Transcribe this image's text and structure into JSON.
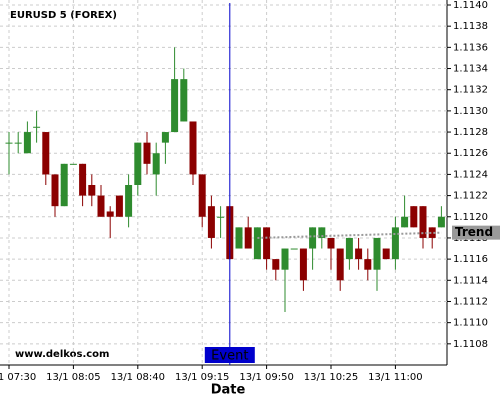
{
  "chart_data": {
    "type": "candlestick",
    "title": "EURUSD 5 (FOREX)",
    "x_label": "Date",
    "watermark": "www.delkos.com",
    "categories": [
      "13/1 07:30",
      null,
      null,
      null,
      null,
      null,
      null,
      "13/1 08:05",
      null,
      null,
      null,
      null,
      null,
      null,
      "13/1 08:40",
      null,
      null,
      null,
      null,
      null,
      null,
      "13/1 09:15",
      null,
      null,
      null,
      null,
      null,
      null,
      "13/1 09:50",
      null,
      null,
      null,
      null,
      null,
      null,
      "13/1 10:25",
      null,
      null,
      null,
      null,
      null,
      null,
      "13/1 11:00",
      null,
      null,
      null,
      null,
      null
    ],
    "open": [
      1.1127,
      1.1127,
      1.1126,
      1.11285,
      1.1128,
      1.1124,
      1.1121,
      1.1125,
      1.1125,
      1.1123,
      1.1122,
      1.11205,
      1.1122,
      1.112,
      1.1123,
      1.1127,
      1.1124,
      1.1127,
      1.1128,
      1.1129,
      1.1129,
      1.1124,
      1.1121,
      1.112,
      1.1121,
      1.1117,
      1.1119,
      1.1116,
      1.1119,
      1.1116,
      1.1115,
      1.1117,
      1.1117,
      1.1117,
      1.1118,
      1.1118,
      1.1117,
      1.1116,
      1.1117,
      1.1116,
      1.1115,
      1.1117,
      1.1116,
      1.1119,
      1.1121,
      1.1121,
      1.1119,
      1.1119
    ],
    "high": [
      1.1128,
      1.1128,
      1.1129,
      1.113,
      1.1128,
      1.1124,
      1.1125,
      1.1125,
      1.1125,
      1.1124,
      1.1123,
      1.1121,
      1.1122,
      1.1124,
      1.1127,
      1.1128,
      1.1127,
      1.1128,
      1.1136,
      1.1134,
      1.1129,
      1.1124,
      1.1122,
      1.1121,
      1.1121,
      1.1119,
      1.112,
      1.1119,
      1.1119,
      1.1116,
      1.1117,
      1.1117,
      1.1117,
      1.1119,
      1.1119,
      1.1118,
      1.1117,
      1.1118,
      1.1118,
      1.1117,
      1.1118,
      1.1117,
      1.112,
      1.1122,
      1.1121,
      1.1121,
      1.1119,
      1.1121
    ],
    "low": [
      1.1124,
      1.1126,
      1.1126,
      1.1127,
      1.1123,
      1.112,
      1.1121,
      1.1125,
      1.1121,
      1.1121,
      1.112,
      1.1118,
      1.112,
      1.1119,
      1.1122,
      1.1124,
      1.1122,
      1.1125,
      1.1128,
      1.1129,
      1.1123,
      1.1119,
      1.1117,
      1.1118,
      1.1116,
      1.1117,
      1.1117,
      1.1116,
      1.1115,
      1.1114,
      1.1111,
      1.1117,
      1.1113,
      1.1115,
      1.1117,
      1.1115,
      1.1113,
      1.1115,
      1.1115,
      1.1114,
      1.1113,
      1.1116,
      1.1115,
      1.1119,
      1.1119,
      1.1117,
      1.1117,
      1.1119
    ],
    "close": [
      1.1127,
      1.1127,
      1.1128,
      1.11285,
      1.1124,
      1.1121,
      1.1125,
      1.1125,
      1.1122,
      1.1122,
      1.112,
      1.112,
      1.112,
      1.1123,
      1.1127,
      1.1125,
      1.1126,
      1.1128,
      1.1133,
      1.1133,
      1.1124,
      1.112,
      1.1118,
      1.112,
      1.1116,
      1.1119,
      1.1117,
      1.1119,
      1.1116,
      1.1115,
      1.1117,
      1.1117,
      1.1114,
      1.1119,
      1.1119,
      1.1117,
      1.1114,
      1.1118,
      1.1116,
      1.1115,
      1.1118,
      1.1116,
      1.1119,
      1.112,
      1.1119,
      1.1118,
      1.1118,
      1.112
    ],
    "up_color": "#2e8b2e",
    "down_color": "#8b0000",
    "ylim": [
      1.1106,
      1.114
    ],
    "yticks": [
      {
        "value": 1.1108,
        "label": "1.1108"
      },
      {
        "value": 1.111,
        "label": "1.1110"
      },
      {
        "value": 1.1112,
        "label": "1.1112"
      },
      {
        "value": 1.1114,
        "label": "1.1114"
      },
      {
        "value": 1.1116,
        "label": "1.1116"
      },
      {
        "value": 1.1118,
        "label": "1.1118"
      },
      {
        "value": 1.112,
        "label": "1.1120"
      },
      {
        "value": 1.1122,
        "label": "1.1122"
      },
      {
        "value": 1.1124,
        "label": "1.1124"
      },
      {
        "value": 1.1126,
        "label": "1.1126"
      },
      {
        "value": 1.1128,
        "label": "1.1128"
      },
      {
        "value": 1.113,
        "label": "1.1130"
      },
      {
        "value": 1.1132,
        "label": "1.1132"
      },
      {
        "value": 1.1134,
        "label": "1.1134"
      },
      {
        "value": 1.1136,
        "label": "1.1136"
      },
      {
        "value": 1.1138,
        "label": "1.1138"
      },
      {
        "value": 1.114,
        "label": "1.1140"
      }
    ],
    "grid": true,
    "trend": {
      "name": "Trend",
      "color": "#999999",
      "x": [
        27,
        47
      ],
      "values": [
        1.1118,
        1.11185
      ]
    },
    "event": {
      "name": "Event",
      "color": "#0000cc",
      "x": 24
    }
  }
}
